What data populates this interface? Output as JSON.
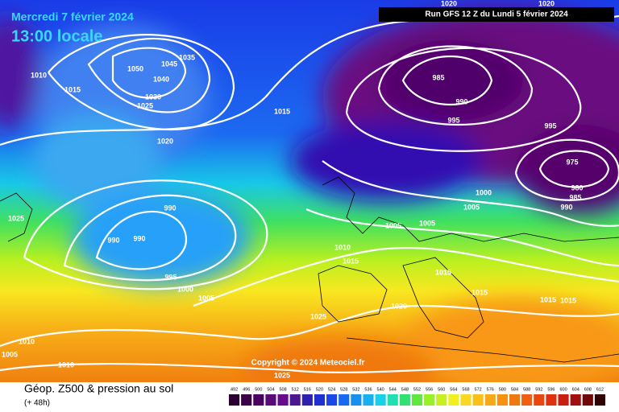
{
  "header": {
    "date": "Mercredi 7 février 2024",
    "time": "13:00 locale",
    "run": "Run GFS 12 Z du Lundi 5 février 2024"
  },
  "copyright": "Copyright © 2024 Meteociel.fr",
  "footer": {
    "title": "Géop. Z500 & pression au sol",
    "lead": "(+ 48h)"
  },
  "isobar_labels": [
    "1035",
    "1045",
    "1050",
    "1040",
    "1030",
    "1025",
    "1020",
    "1010",
    "1015",
    "1015",
    "985",
    "990",
    "995",
    "995",
    "975",
    "980",
    "985",
    "990",
    "1000",
    "1005",
    "1005",
    "1005",
    "990",
    "990",
    "990",
    "995",
    "1000",
    "1005",
    "1010",
    "1015",
    "1015",
    "1015",
    "1015",
    "1015",
    "1020",
    "1025",
    "1025",
    "1010",
    "1005",
    "1010",
    "1025",
    "1020",
    "1020"
  ],
  "legend": {
    "values": [
      492,
      496,
      500,
      504,
      508,
      512,
      516,
      520,
      524,
      528,
      532,
      536,
      540,
      544,
      548,
      552,
      556,
      560,
      564,
      568,
      572,
      576,
      580,
      584,
      588,
      592,
      596,
      600,
      604,
      608,
      612
    ]
  }
}
